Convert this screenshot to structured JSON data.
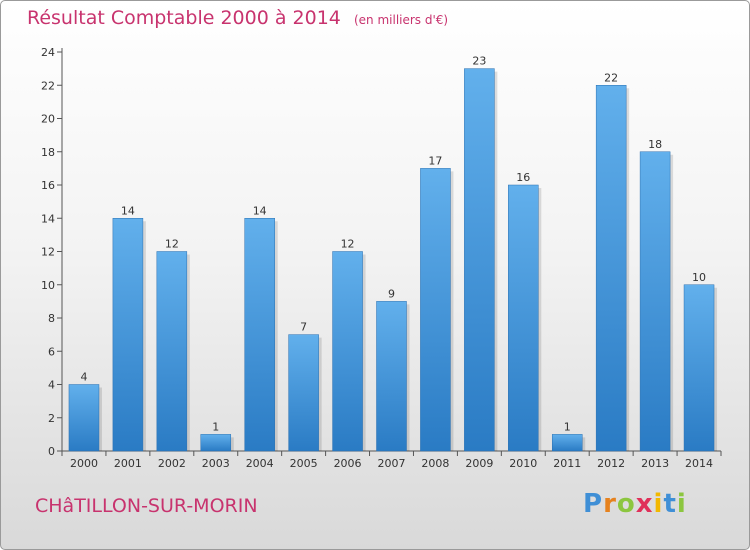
{
  "header": {
    "title": "Résultat Comptable 2000 à 2014",
    "subtitle": "(en milliers d'€)"
  },
  "footer": {
    "place_name": "CHâTILLON-SUR-MORIN",
    "logo_letters": [
      "P",
      "r",
      "o",
      "x",
      "i",
      "t",
      "i"
    ]
  },
  "colors": {
    "title": "#c8336e",
    "bar_light": "#62b0ec",
    "bar_dark": "#2a7bc4"
  },
  "chart_data": {
    "type": "bar",
    "title": "Résultat Comptable 2000 à 2014",
    "subtitle": "(en milliers d'€)",
    "xlabel": "",
    "ylabel": "",
    "categories": [
      "2000",
      "2001",
      "2002",
      "2003",
      "2004",
      "2005",
      "2006",
      "2007",
      "2008",
      "2009",
      "2010",
      "2011",
      "2012",
      "2013",
      "2014"
    ],
    "values": [
      4,
      14,
      12,
      1,
      14,
      7,
      12,
      9,
      17,
      23,
      16,
      1,
      22,
      18,
      10
    ],
    "ylim": [
      0,
      24
    ],
    "yticks": [
      0,
      2,
      4,
      6,
      8,
      10,
      12,
      14,
      16,
      18,
      20,
      22,
      24
    ],
    "grid": false,
    "legend": "none"
  }
}
